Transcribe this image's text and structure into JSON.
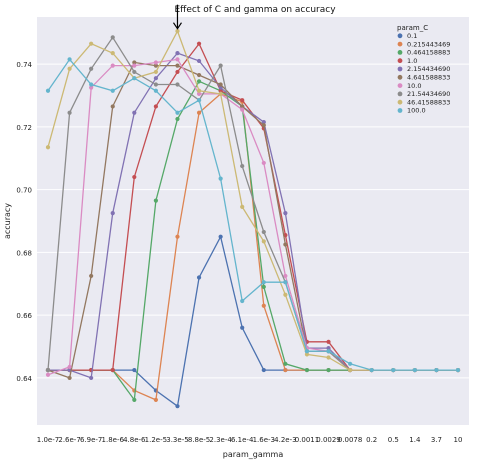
{
  "chart_data": {
    "type": "line",
    "title": "Effect of C and gamma on accuracy",
    "xlabel": "param_gamma",
    "ylabel": "accuracy",
    "ylim": [
      0.625,
      0.755
    ],
    "yticks": [
      0.64,
      0.66,
      0.68,
      0.7,
      0.72,
      0.74
    ],
    "ytick_labels": [
      "0.64",
      "0.66",
      "0.68",
      "0.70",
      "0.72",
      "0.74"
    ],
    "grid": true,
    "legend_title": "param_C",
    "legend_position": "top-right",
    "categories": [
      "1.0e-7",
      "2.6e-7",
      "6.9e-7",
      "1.8e-6",
      "4.8e-6",
      "1.2e-5",
      "3.3e-5",
      "8.8e-5",
      "2.3e-4",
      "6.1e-4",
      "1.6e-3",
      "4.2e-3",
      "0.0011",
      "0.0029",
      "0.0078",
      "0.2",
      "0.5",
      "1.4",
      "3.7",
      "10"
    ],
    "annotation": {
      "label": "",
      "category_index": 6,
      "value": 0.75
    },
    "series": [
      {
        "name": "0.1",
        "color": "#4c72b0",
        "values": [
          0.6425,
          0.6425,
          0.6425,
          0.6425,
          0.6425,
          0.636,
          0.631,
          0.672,
          0.685,
          0.656,
          0.6425,
          0.6425,
          0.6425,
          0.6425,
          0.6425,
          0.6425,
          0.6425,
          0.6425,
          0.6425,
          0.6425
        ]
      },
      {
        "name": "0.215443469",
        "color": "#dd8452",
        "values": [
          0.6425,
          0.6425,
          0.6425,
          0.6425,
          0.636,
          0.633,
          0.685,
          0.7245,
          0.7305,
          0.728,
          0.663,
          0.6425,
          0.6425,
          0.6425,
          0.6425,
          0.6425,
          0.6425,
          0.6425,
          0.6425,
          0.6425
        ]
      },
      {
        "name": "0.464158883",
        "color": "#55a868",
        "values": [
          0.6425,
          0.6425,
          0.6425,
          0.6425,
          0.633,
          0.6965,
          0.7225,
          0.7345,
          0.7315,
          0.7265,
          0.669,
          0.6445,
          0.6425,
          0.6425,
          0.6425,
          0.6425,
          0.6425,
          0.6425,
          0.6425,
          0.6425
        ]
      },
      {
        "name": "1.0",
        "color": "#c44e52",
        "values": [
          0.6425,
          0.6425,
          0.6425,
          0.6425,
          0.704,
          0.7265,
          0.7375,
          0.7465,
          0.7315,
          0.7285,
          0.7195,
          0.6855,
          0.6515,
          0.6515,
          0.6425,
          0.6425,
          0.6425,
          0.6425,
          0.6425,
          0.6425
        ]
      },
      {
        "name": "2.154434690",
        "color": "#8172b3",
        "values": [
          0.6425,
          0.6425,
          0.64,
          0.6925,
          0.7245,
          0.7355,
          0.7435,
          0.741,
          0.7325,
          0.7265,
          0.7215,
          0.6925,
          0.6495,
          0.6495,
          0.6425,
          0.6425,
          0.6425,
          0.6425,
          0.6425,
          0.6425
        ]
      },
      {
        "name": "4.641588833",
        "color": "#937860",
        "values": [
          0.6425,
          0.64,
          0.6725,
          0.7265,
          0.7405,
          0.7395,
          0.7395,
          0.7365,
          0.7335,
          0.7265,
          0.7205,
          0.6825,
          0.6485,
          0.6485,
          0.6425,
          0.6425,
          0.6425,
          0.6425,
          0.6425,
          0.6425
        ]
      },
      {
        "name": "10.0",
        "color": "#da8bc3",
        "values": [
          0.641,
          0.6435,
          0.7325,
          0.7395,
          0.7395,
          0.7405,
          0.7415,
          0.7305,
          0.7305,
          0.7255,
          0.7085,
          0.6725,
          0.6495,
          0.6485,
          0.6425,
          0.6425,
          0.6425,
          0.6425,
          0.6425,
          0.6425
        ]
      },
      {
        "name": "21.54434690",
        "color": "#8c8c8c",
        "values": [
          0.6425,
          0.7245,
          0.7385,
          0.7485,
          0.7375,
          0.7335,
          0.7335,
          0.7285,
          0.7395,
          0.7075,
          0.6865,
          0.6705,
          0.6485,
          0.6485,
          0.6425,
          0.6425,
          0.6425,
          0.6425,
          0.6425,
          0.6425
        ]
      },
      {
        "name": "46.41588833",
        "color": "#ccb974",
        "values": [
          0.7135,
          0.7385,
          0.7465,
          0.7435,
          0.7355,
          0.7375,
          0.7505,
          0.7315,
          0.7305,
          0.6945,
          0.6835,
          0.6665,
          0.6475,
          0.6465,
          0.6425,
          0.6425,
          0.6425,
          0.6425,
          0.6425,
          0.6425
        ]
      },
      {
        "name": "100.0",
        "color": "#64b5cd",
        "values": [
          0.7315,
          0.7415,
          0.7335,
          0.7315,
          0.7355,
          0.7315,
          0.7245,
          0.7285,
          0.7035,
          0.6645,
          0.6705,
          0.6705,
          0.6485,
          0.6485,
          0.6445,
          0.6425,
          0.6425,
          0.6425,
          0.6425,
          0.6425
        ]
      }
    ]
  }
}
